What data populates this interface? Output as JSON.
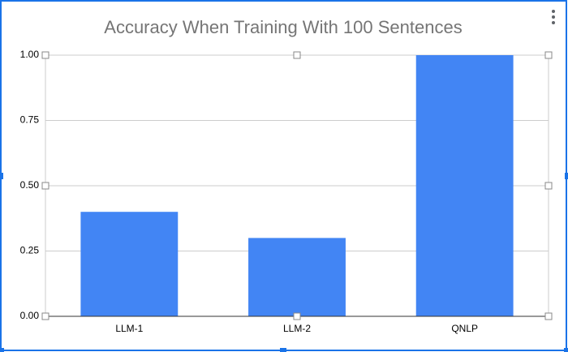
{
  "chart_data": {
    "type": "bar",
    "title": "Accuracy When Training With 100 Sentences",
    "categories": [
      "LLM-1",
      "LLM-2",
      "QNLP"
    ],
    "values": [
      0.4,
      0.3,
      1.0
    ],
    "color": "#4285f4",
    "ylim": [
      0,
      1
    ],
    "yticks": [
      {
        "value": 0,
        "label": "0.00"
      },
      0.25,
      {
        "value": 0.5,
        "label": "0.50"
      },
      0.75,
      {
        "value": 1,
        "label": "1.00"
      }
    ],
    "grid": true
  }
}
